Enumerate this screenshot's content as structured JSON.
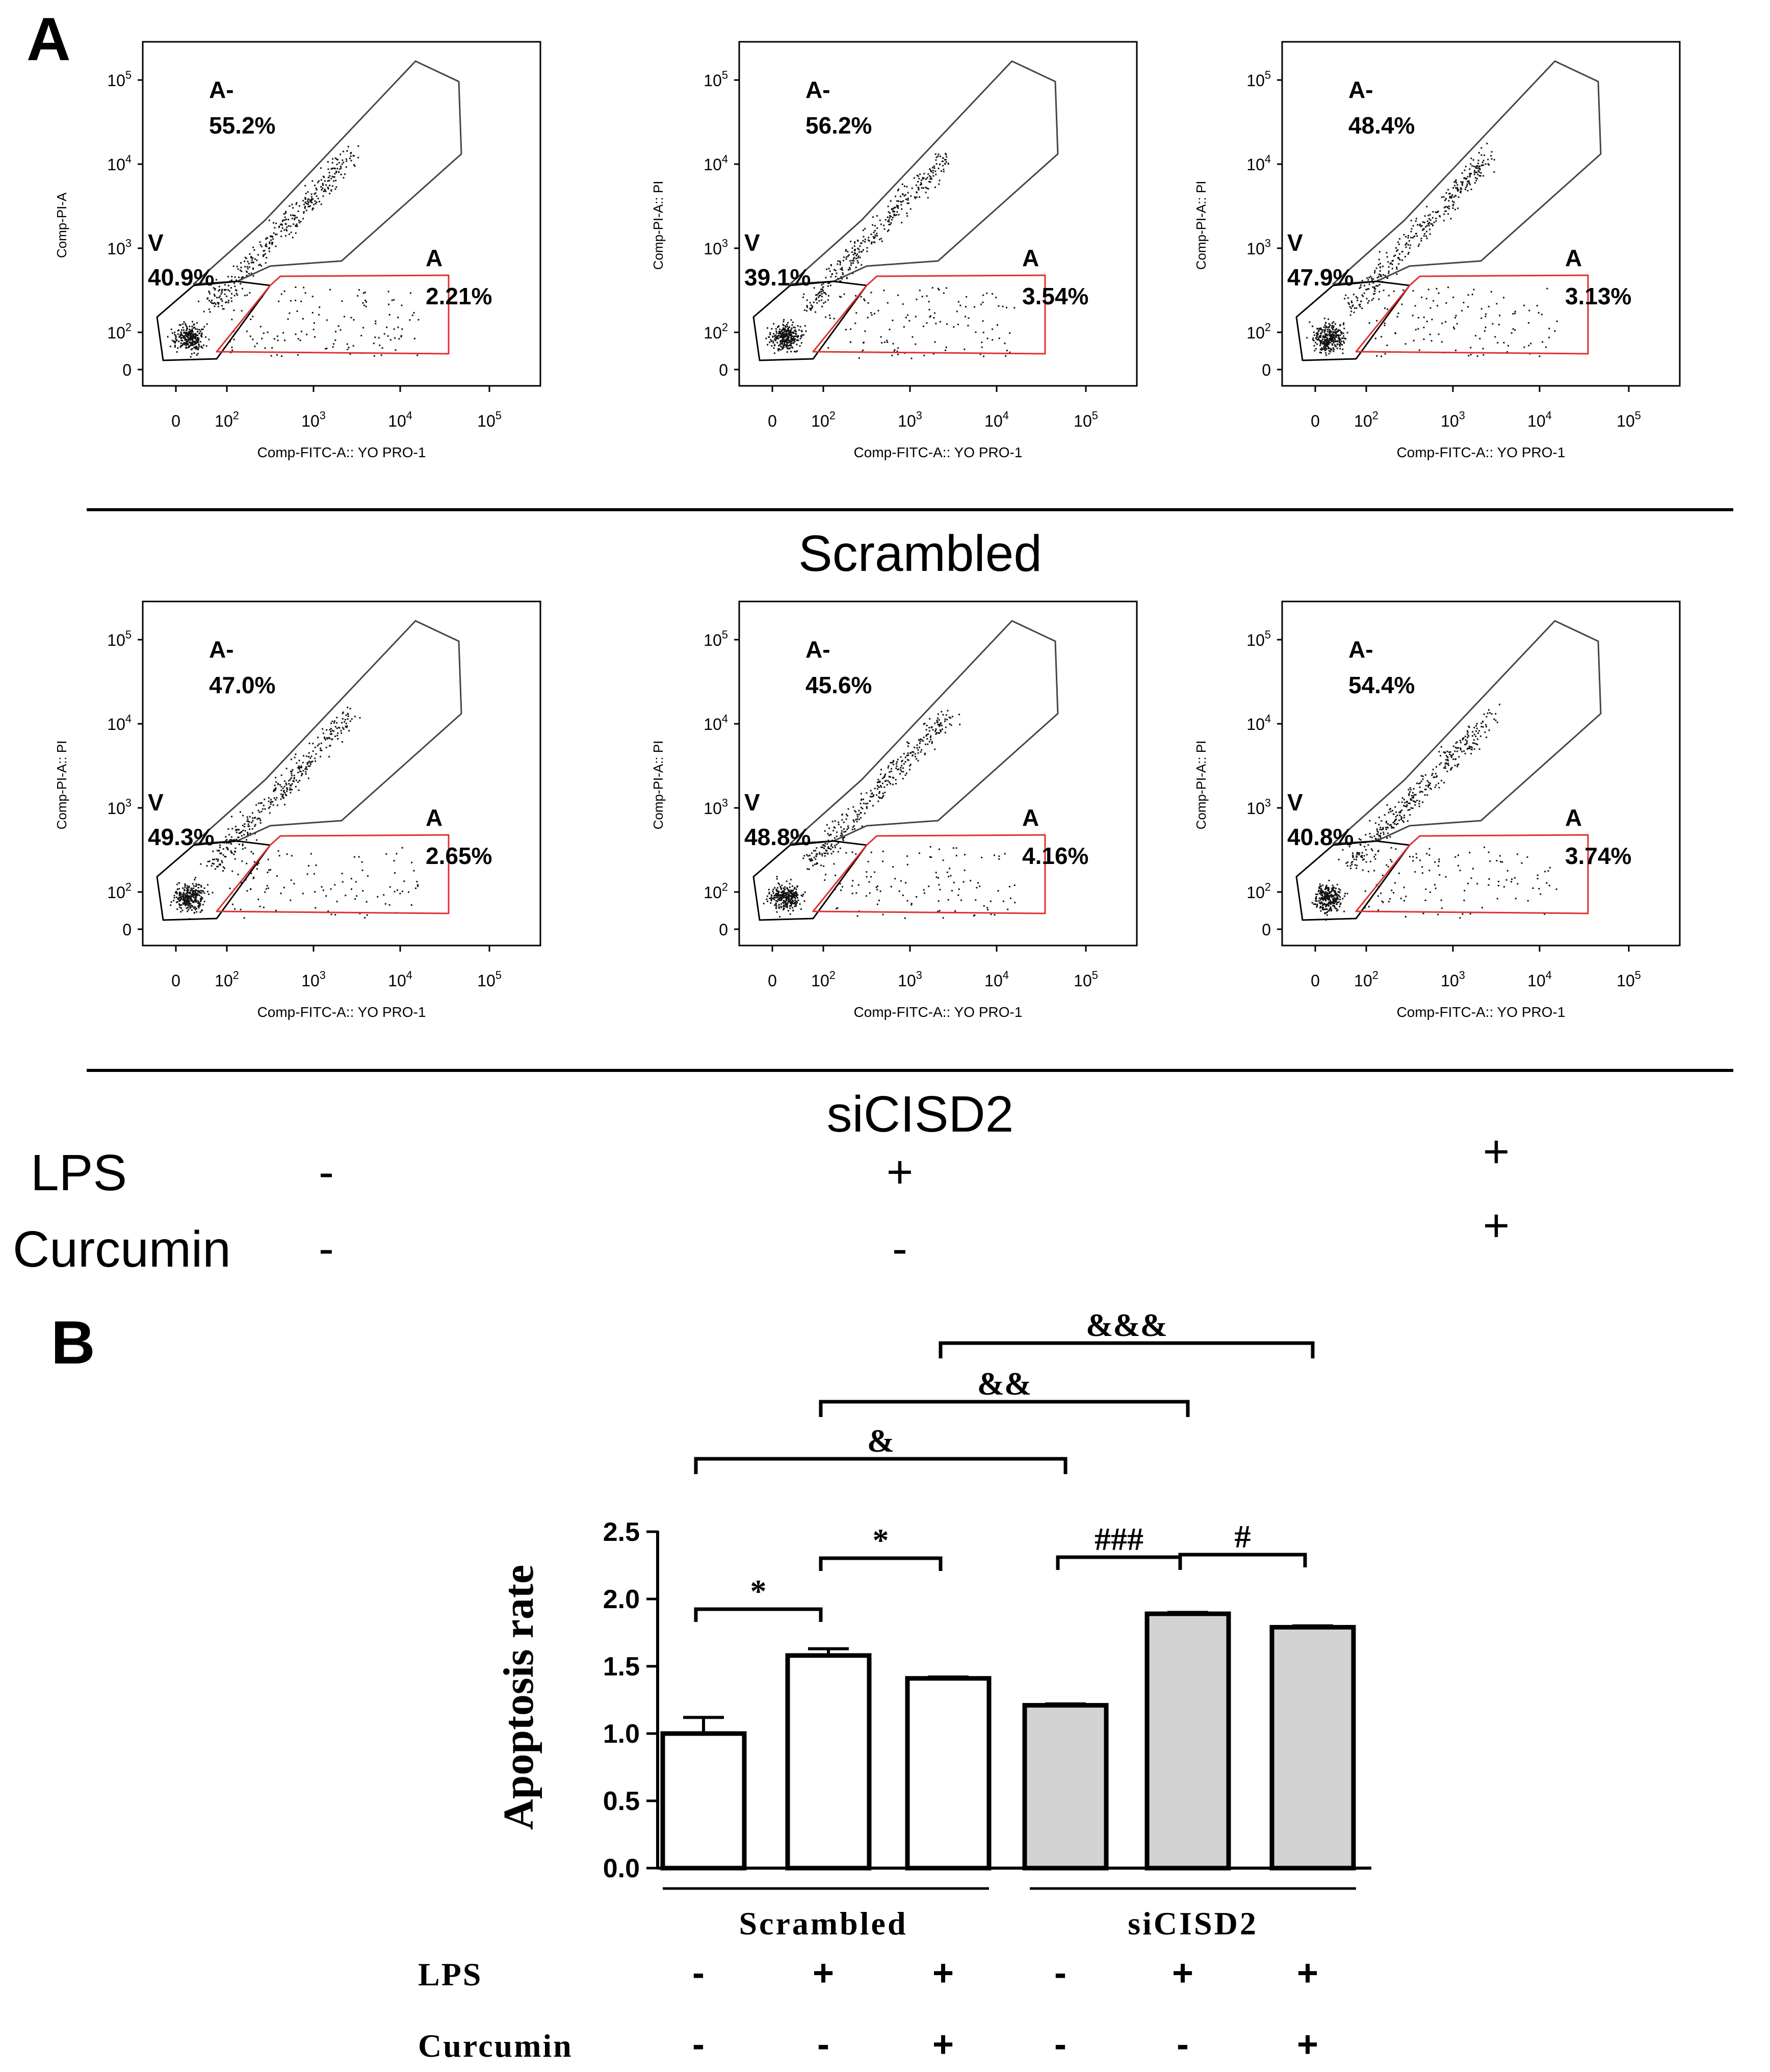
{
  "panel_a": {
    "letter": "A",
    "x_axis_label": "Comp-FITC-A:: YO PRO-1",
    "x_ticks": [
      {
        "base": "0",
        "exp": ""
      },
      {
        "base": "10",
        "exp": "2"
      },
      {
        "base": "10",
        "exp": "3"
      },
      {
        "base": "10",
        "exp": "4"
      },
      {
        "base": "10",
        "exp": "5"
      }
    ],
    "y_ticks": [
      {
        "base": "0",
        "exp": ""
      },
      {
        "base": "10",
        "exp": "2"
      },
      {
        "base": "10",
        "exp": "3"
      },
      {
        "base": "10",
        "exp": "4"
      },
      {
        "base": "10",
        "exp": "5"
      }
    ],
    "gate_labels": {
      "late": "A-",
      "viable": "V",
      "early": "A"
    },
    "rows": [
      {
        "group": "Scrambled",
        "plots": [
          {
            "y_axis_label": "Comp-PI-A",
            "late": "55.2%",
            "viable": "40.9%",
            "early": "2.21%"
          },
          {
            "y_axis_label": "Comp-PI-A:: PI",
            "late": "56.2%",
            "viable": "39.1%",
            "early": "3.54%"
          },
          {
            "y_axis_label": "Comp-PI-A:: PI",
            "late": "48.4%",
            "viable": "47.9%",
            "early": "3.13%"
          }
        ]
      },
      {
        "group": "siCISD2",
        "plots": [
          {
            "y_axis_label": "Comp-PI-A:: PI",
            "late": "47.0%",
            "viable": "49.3%",
            "early": "2.65%"
          },
          {
            "y_axis_label": "Comp-PI-A:: PI",
            "late": "45.6%",
            "viable": "48.8%",
            "early": "4.16%"
          },
          {
            "y_axis_label": "Comp-PI-A:: PI",
            "late": "54.4%",
            "viable": "40.8%",
            "early": "3.74%"
          }
        ]
      }
    ],
    "treatments": [
      {
        "label": "LPS",
        "values": [
          "-",
          "+",
          "+"
        ]
      },
      {
        "label": "Curcumin",
        "values": [
          "-",
          "-",
          "+"
        ]
      }
    ]
  },
  "panel_b": {
    "letter": "B",
    "treatments": [
      {
        "label": "LPS",
        "values": [
          "-",
          "+",
          "+",
          "-",
          "+",
          "+"
        ]
      },
      {
        "label": "Curcumin",
        "values": [
          "-",
          "-",
          "+",
          "-",
          "-",
          "+"
        ]
      }
    ],
    "groups": [
      "Scrambled",
      "siCISD2"
    ],
    "significance": [
      {
        "from": 0,
        "to": 1,
        "label": "*"
      },
      {
        "from": 1,
        "to": 2,
        "label": "*"
      },
      {
        "from": 3,
        "to": 4,
        "label": "###"
      },
      {
        "from": 4,
        "to": 5,
        "label": "#"
      },
      {
        "from": 0,
        "to": 3,
        "label": "&"
      },
      {
        "from": 1,
        "to": 4,
        "label": "&&"
      },
      {
        "from": 2,
        "to": 5,
        "label": "&&&"
      }
    ]
  },
  "chart_data": {
    "type": "bar",
    "ylabel": "Apoptosis rate",
    "ylim": [
      0,
      2.5
    ],
    "yticks": [
      "0.0",
      "0.5",
      "1.0",
      "1.5",
      "2.0",
      "2.5"
    ],
    "categories": [
      "Scrambled / LPS - / Curcumin -",
      "Scrambled / LPS + / Curcumin -",
      "Scrambled / LPS + / Curcumin +",
      "siCISD2 / LPS - / Curcumin -",
      "siCISD2 / LPS + / Curcumin -",
      "siCISD2 / LPS + / Curcumin +"
    ],
    "values": [
      1.0,
      1.58,
      1.41,
      1.21,
      1.89,
      1.79
    ],
    "errors": [
      0.12,
      0.05,
      0.01,
      0.01,
      0.01,
      0.01
    ],
    "colors": [
      "#ffffff",
      "#ffffff",
      "#ffffff",
      "#d3d3d3",
      "#d3d3d3",
      "#d3d3d3"
    ]
  }
}
